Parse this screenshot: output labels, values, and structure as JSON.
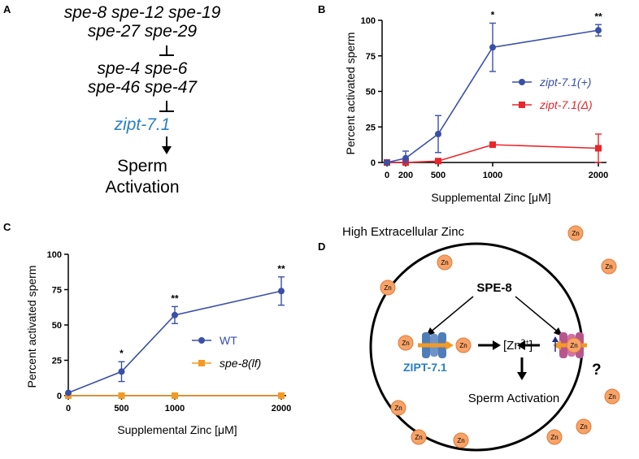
{
  "panels": {
    "a": "A",
    "b": "B",
    "c": "C",
    "d": "D"
  },
  "pathway": {
    "line1": "spe-8 spe-12 spe-19",
    "line2": "spe-27 spe-29",
    "line3": "spe-4 spe-6",
    "line4": "spe-46 spe-47",
    "line5": "zipt-7.1",
    "line6": "Sperm",
    "line7": "Activation",
    "zipt_color": "#2a7fc1"
  },
  "chart_data": [
    {
      "type": "line",
      "panel": "B",
      "x": [
        0,
        200,
        500,
        1000,
        2000
      ],
      "xticks": [
        "0",
        "200",
        "500",
        "1000",
        "2000"
      ],
      "xlabel": "Supplemental Zinc [μM]",
      "ylabel": "Percent activated sperm",
      "ylim": [
        0,
        100
      ],
      "yticks": [
        "0",
        "25",
        "50",
        "75",
        "100"
      ],
      "legend_position": "right",
      "series": [
        {
          "name": "zipt-7.1(+)",
          "color": "#3a4fa8",
          "marker": "circle",
          "values": [
            0,
            3,
            20,
            81,
            93
          ],
          "errors": [
            0,
            5,
            13,
            17,
            4
          ]
        },
        {
          "name": "zipt-7.1(Δ)",
          "color": "#e8262b",
          "marker": "square",
          "values": [
            0,
            0,
            1,
            12.5,
            10
          ],
          "errors": [
            0,
            0,
            1,
            1,
            10
          ]
        }
      ],
      "annotations": [
        {
          "x": 1000,
          "text": "*"
        },
        {
          "x": 2000,
          "text": "**"
        }
      ]
    },
    {
      "type": "line",
      "panel": "C",
      "x": [
        0,
        500,
        1000,
        2000
      ],
      "xticks": [
        "0",
        "500",
        "1000",
        "2000"
      ],
      "xlabel": "Supplemental Zinc [μM]",
      "ylabel": "Percent activated sperm",
      "ylim": [
        0,
        100
      ],
      "yticks": [
        "0",
        "25",
        "50",
        "75",
        "100"
      ],
      "legend_position": "right",
      "series": [
        {
          "name": "WT",
          "color": "#3a4fa8",
          "marker": "circle",
          "values": [
            2,
            17,
            57,
            74
          ],
          "errors": [
            0,
            7,
            6,
            10
          ]
        },
        {
          "name": "spe-8(lf)",
          "color": "#f39a24",
          "marker": "square",
          "values": [
            0,
            0,
            0,
            0
          ],
          "errors": [
            0,
            0,
            0,
            0
          ]
        }
      ],
      "annotations": [
        {
          "x": 500,
          "text": "*"
        },
        {
          "x": 1000,
          "text": "**"
        },
        {
          "x": 2000,
          "text": "**"
        }
      ]
    }
  ],
  "diagram": {
    "title": "High Extracellular Zinc",
    "spe8": "SPE-8",
    "zn": "Zn",
    "ion": "[Zn",
    "ion_sup": "2+",
    "ion_close": "]",
    "transporter": "ZIPT-7.1",
    "question": "?",
    "result": "Sperm Activation",
    "zn_fill": "#f7a368",
    "zipt_color": "#4f7db8",
    "other_color": "#b8558f",
    "arrow_color": "#f39a24",
    "transporter_label_color": "#2a7fc1"
  }
}
